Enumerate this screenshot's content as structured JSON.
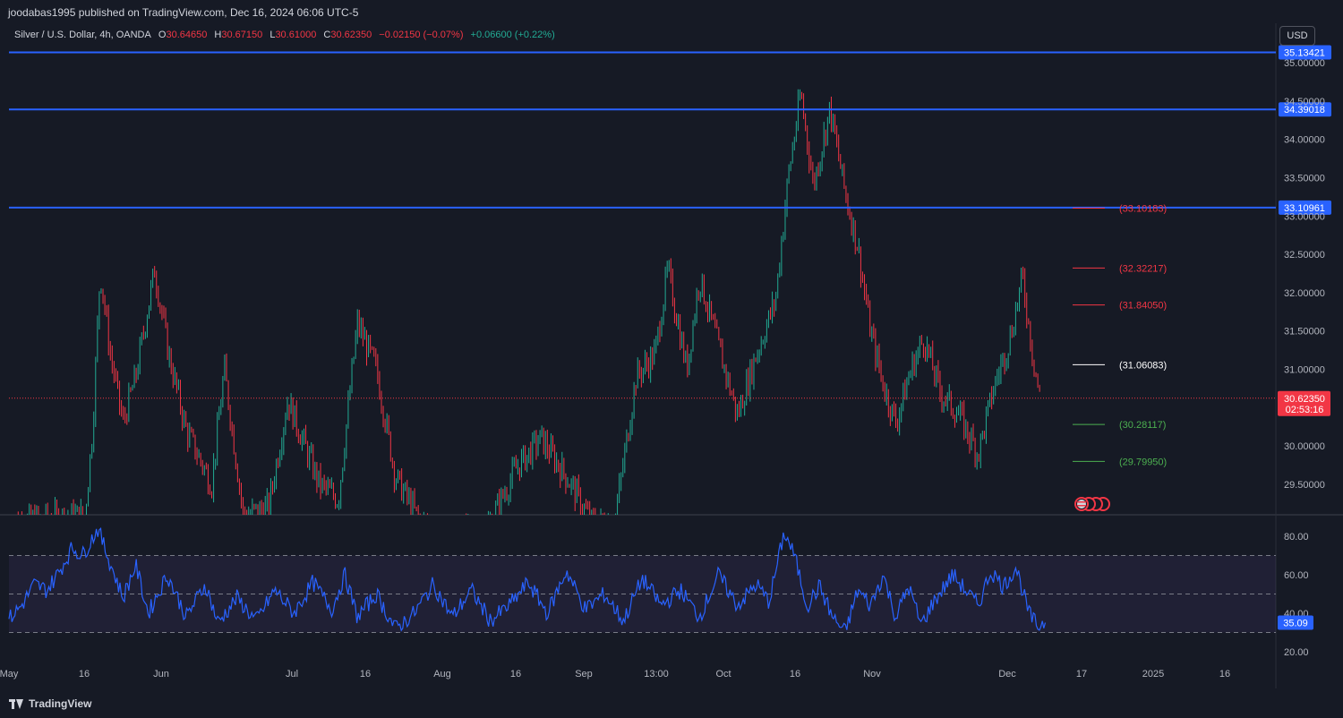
{
  "header": {
    "published": "joodabas1995 published on TradingView.com, Dec 16, 2024 06:06 UTC-5"
  },
  "legend": {
    "symbol": "Silver / U.S. Dollar, 4h, OANDA",
    "open_key": "O",
    "open": "30.64650",
    "high_key": "H",
    "high": "30.67150",
    "low_key": "L",
    "low": "30.61000",
    "close_key": "C",
    "close": "30.62350",
    "change": "−0.02150 (−0.07%)",
    "change2": "+0.06600 (+0.22%)"
  },
  "currency_button": "USD",
  "footer": {
    "brand": "TradingView"
  },
  "colors": {
    "background": "#161a25",
    "grid": "#232632",
    "up": "#22ab94",
    "down": "#f23645",
    "hline": "#2962ff",
    "rsi": "#2962ff",
    "rsi_band": "#7e57c2"
  },
  "chart_data": [
    {
      "type": "candlestick",
      "title": "Silver / U.S. Dollar, 4h, OANDA",
      "ylim": [
        29.2,
        35.1
      ],
      "y_ticks": [
        "35.00000",
        "34.50000",
        "34.00000",
        "33.50000",
        "33.00000",
        "32.50000",
        "32.00000",
        "31.50000",
        "31.00000",
        "30.50000",
        "30.00000",
        "29.50000"
      ],
      "x_tick_labels": [
        "May",
        "16",
        "Jun",
        "Jul",
        "16",
        "Aug",
        "16",
        "Sep",
        "13:00",
        "Oct",
        "16",
        "Nov",
        "Dec",
        "17",
        "2025",
        "16"
      ],
      "horizontal_lines": [
        {
          "value": 35.13421,
          "label": "35.13421",
          "color": "#2962ff"
        },
        {
          "value": 34.39018,
          "label": "34.39018",
          "color": "#2962ff"
        },
        {
          "value": 33.10961,
          "label": "33.10961",
          "color": "#2962ff"
        }
      ],
      "level_markers": [
        {
          "value": 33.10183,
          "label": "(33.10183)",
          "color": "#f23645"
        },
        {
          "value": 32.32217,
          "label": "(32.32217)",
          "color": "#f23645"
        },
        {
          "value": 31.8405,
          "label": "(31.84050)",
          "color": "#f23645"
        },
        {
          "value": 31.06083,
          "label": "(31.06083)",
          "color": "#ffffff"
        },
        {
          "value": 30.28117,
          "label": "(30.28117)",
          "color": "#4caf50"
        },
        {
          "value": 29.7995,
          "label": "(29.79950)",
          "color": "#4caf50"
        }
      ],
      "last_price": {
        "value": 30.6235,
        "label": "30.62350",
        "countdown": "02:53:16"
      },
      "price_path": [
        [
          0.0,
          29.0
        ],
        [
          0.06,
          29.1
        ],
        [
          0.066,
          30.2
        ],
        [
          0.072,
          32.3
        ],
        [
          0.08,
          31.2
        ],
        [
          0.09,
          30.3
        ],
        [
          0.1,
          30.9
        ],
        [
          0.115,
          32.3
        ],
        [
          0.126,
          31.2
        ],
        [
          0.14,
          30.2
        ],
        [
          0.16,
          29.5
        ],
        [
          0.17,
          31.0
        ],
        [
          0.185,
          29.1
        ],
        [
          0.205,
          29.2
        ],
        [
          0.22,
          30.6
        ],
        [
          0.245,
          29.5
        ],
        [
          0.26,
          29.3
        ],
        [
          0.275,
          31.6
        ],
        [
          0.29,
          31.0
        ],
        [
          0.305,
          29.6
        ],
        [
          0.325,
          29.0
        ],
        [
          0.345,
          28.8
        ],
        [
          0.365,
          28.9
        ],
        [
          0.38,
          29.0
        ],
        [
          0.4,
          29.7
        ],
        [
          0.42,
          30.1
        ],
        [
          0.44,
          29.6
        ],
        [
          0.46,
          29.0
        ],
        [
          0.478,
          29.0
        ],
        [
          0.495,
          30.9
        ],
        [
          0.51,
          31.2
        ],
        [
          0.52,
          32.3
        ],
        [
          0.535,
          31.0
        ],
        [
          0.545,
          32.2
        ],
        [
          0.56,
          31.3
        ],
        [
          0.575,
          30.4
        ],
        [
          0.59,
          31.2
        ],
        [
          0.605,
          31.9
        ],
        [
          0.615,
          33.5
        ],
        [
          0.625,
          34.6
        ],
        [
          0.635,
          33.4
        ],
        [
          0.648,
          34.4
        ],
        [
          0.66,
          33.3
        ],
        [
          0.67,
          32.6
        ],
        [
          0.68,
          31.5
        ],
        [
          0.69,
          30.8
        ],
        [
          0.7,
          30.3
        ],
        [
          0.712,
          31.0
        ],
        [
          0.722,
          31.4
        ],
        [
          0.735,
          30.7
        ],
        [
          0.75,
          30.4
        ],
        [
          0.765,
          29.9
        ],
        [
          0.778,
          30.8
        ],
        [
          0.79,
          31.4
        ],
        [
          0.8,
          32.2
        ],
        [
          0.808,
          31.2
        ],
        [
          0.815,
          30.5
        ]
      ]
    },
    {
      "type": "line",
      "title": "RSI",
      "ylim": [
        15,
        88
      ],
      "y_ticks": [
        "80.00",
        "60.00",
        "40.00",
        "20.00"
      ],
      "band": {
        "upper": 70,
        "middle": 50,
        "lower": 30
      },
      "last_value": {
        "value": 35.09,
        "label": "35.09"
      },
      "rsi_path": [
        [
          0.0,
          37
        ],
        [
          0.01,
          44
        ],
        [
          0.02,
          55
        ],
        [
          0.03,
          52
        ],
        [
          0.04,
          62
        ],
        [
          0.05,
          74
        ],
        [
          0.058,
          70
        ],
        [
          0.07,
          84
        ],
        [
          0.08,
          66
        ],
        [
          0.09,
          48
        ],
        [
          0.1,
          65
        ],
        [
          0.11,
          40
        ],
        [
          0.125,
          60
        ],
        [
          0.14,
          38
        ],
        [
          0.155,
          55
        ],
        [
          0.165,
          35
        ],
        [
          0.18,
          48
        ],
        [
          0.195,
          36
        ],
        [
          0.21,
          52
        ],
        [
          0.225,
          40
        ],
        [
          0.24,
          56
        ],
        [
          0.255,
          42
        ],
        [
          0.265,
          60
        ],
        [
          0.275,
          38
        ],
        [
          0.29,
          50
        ],
        [
          0.305,
          32
        ],
        [
          0.32,
          40
        ],
        [
          0.335,
          55
        ],
        [
          0.35,
          38
        ],
        [
          0.365,
          52
        ],
        [
          0.38,
          36
        ],
        [
          0.395,
          44
        ],
        [
          0.41,
          56
        ],
        [
          0.425,
          40
        ],
        [
          0.44,
          62
        ],
        [
          0.455,
          42
        ],
        [
          0.47,
          50
        ],
        [
          0.485,
          36
        ],
        [
          0.5,
          58
        ],
        [
          0.515,
          44
        ],
        [
          0.53,
          52
        ],
        [
          0.545,
          38
        ],
        [
          0.56,
          60
        ],
        [
          0.575,
          44
        ],
        [
          0.59,
          55
        ],
        [
          0.6,
          46
        ],
        [
          0.612,
          82
        ],
        [
          0.62,
          70
        ],
        [
          0.63,
          44
        ],
        [
          0.64,
          54
        ],
        [
          0.65,
          38
        ],
        [
          0.66,
          30
        ],
        [
          0.67,
          52
        ],
        [
          0.68,
          44
        ],
        [
          0.69,
          60
        ],
        [
          0.7,
          38
        ],
        [
          0.71,
          54
        ],
        [
          0.72,
          34
        ],
        [
          0.73,
          46
        ],
        [
          0.745,
          60
        ],
        [
          0.755,
          52
        ],
        [
          0.765,
          44
        ],
        [
          0.775,
          62
        ],
        [
          0.785,
          54
        ],
        [
          0.795,
          64
        ],
        [
          0.805,
          40
        ],
        [
          0.812,
          33
        ],
        [
          0.818,
          36
        ]
      ]
    }
  ]
}
